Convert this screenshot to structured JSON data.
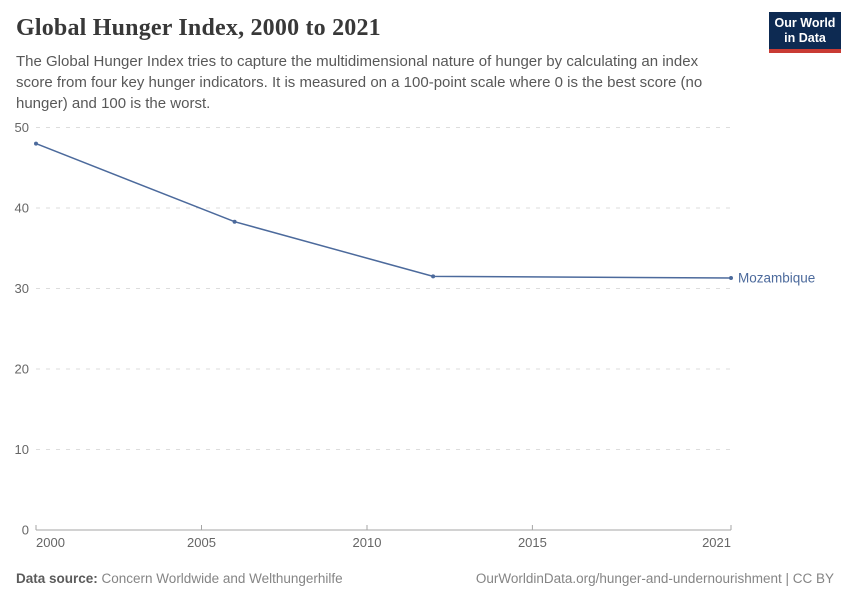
{
  "header": {
    "title": "Global Hunger Index, 2000 to 2021",
    "subtitle": "The Global Hunger Index tries to capture the multidimensional nature of hunger by calculating an index score from four key hunger indicators. It is measured on a 100-point scale where 0 is the best score (no hunger) and 100 is the worst.",
    "logo": {
      "line1": "Our World",
      "line2": "in Data",
      "bg_color": "#0d2a52",
      "accent_color": "#c93b34"
    }
  },
  "chart_data": {
    "type": "line",
    "title": "Global Hunger Index, 2000 to 2021",
    "xlabel": "",
    "ylabel": "",
    "xlim": [
      2000,
      2021
    ],
    "ylim": [
      0,
      50
    ],
    "xticks": [
      2000,
      2005,
      2010,
      2015,
      2021
    ],
    "yticks": [
      0,
      10,
      20,
      30,
      40,
      50
    ],
    "grid": "horizontal-dashed",
    "legend_position": "end-of-line-label",
    "grid_color": "#dddddd",
    "axis_color": "#a5a5a5",
    "tick_label_color": "#666666",
    "series": [
      {
        "name": "Mozambique",
        "color": "#4C6A9C",
        "x": [
          2000,
          2006,
          2012,
          2021
        ],
        "values": [
          48.0,
          38.3,
          31.5,
          31.3
        ]
      }
    ]
  },
  "footer": {
    "source_label": "Data source:",
    "source_value": " Concern Worldwide and Welthungerhilfe",
    "credit": "OurWorldinData.org/hunger-and-undernourishment | CC BY"
  }
}
